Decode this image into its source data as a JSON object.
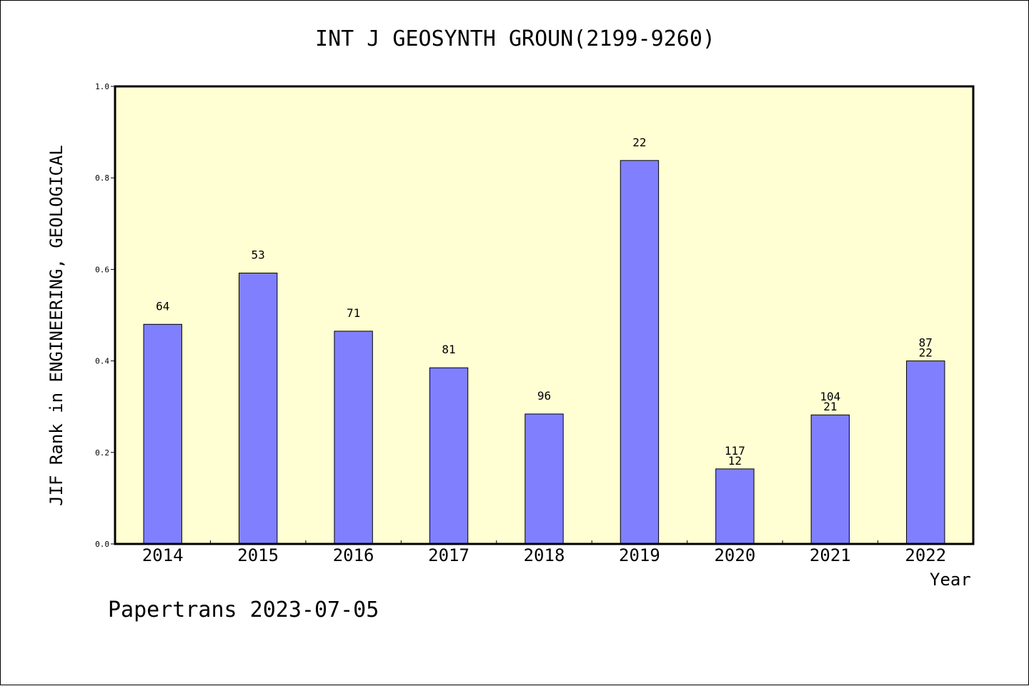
{
  "chart_data": {
    "type": "bar",
    "title": "INT J GEOSYNTH GROUN(2199-9260)",
    "xlabel": "Year",
    "ylabel": "JIF Rank in ENGINEERING, GEOLOGICAL",
    "categories": [
      "2014",
      "2015",
      "2016",
      "2017",
      "2018",
      "2019",
      "2020",
      "2021",
      "2022"
    ],
    "values": [
      0.48,
      0.592,
      0.465,
      0.385,
      0.284,
      0.838,
      0.164,
      0.282,
      0.4
    ],
    "bar_labels": [
      [
        "64"
      ],
      [
        "53"
      ],
      [
        "71"
      ],
      [
        "81"
      ],
      [
        "96"
      ],
      [
        "22"
      ],
      [
        "117",
        "12"
      ],
      [
        "104",
        "21"
      ],
      [
        "87",
        "22"
      ]
    ],
    "ylim": [
      0,
      1.0
    ],
    "yticks": [
      "0.0",
      "0.2",
      "0.4",
      "0.6",
      "0.8",
      "1.0"
    ],
    "grid": false,
    "plot_background": "#ffffd3",
    "bar_color": "#8080ff"
  },
  "footer": "Papertrans 2023-07-05"
}
